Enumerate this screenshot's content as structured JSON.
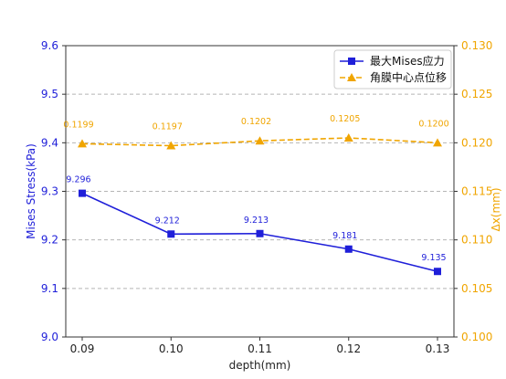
{
  "chart_data": {
    "type": "line",
    "xlabel": "depth(mm)",
    "ylabel_left": "Mises Stress(kPa)",
    "ylabel_right": "Δx(mm)",
    "x": [
      0.09,
      0.1,
      0.11,
      0.12,
      0.13
    ],
    "x_tick_labels": [
      "0.09",
      "0.10",
      "0.11",
      "0.12",
      "0.13"
    ],
    "ylim_left": [
      9.0,
      9.6
    ],
    "yticks_left": [
      "9.0",
      "9.1",
      "9.2",
      "9.3",
      "9.4",
      "9.5",
      "9.6"
    ],
    "ylim_right": [
      0.1,
      0.13
    ],
    "yticks_right": [
      "0.100",
      "0.105",
      "0.110",
      "0.115",
      "0.120",
      "0.125",
      "0.130"
    ],
    "grid": "horizontal dashed",
    "legend_position": "top-right",
    "series": [
      {
        "name": "最大Mises应力",
        "axis": "left",
        "color": "#1f1fd9",
        "line_style": "solid",
        "marker": "square",
        "values": [
          9.296,
          9.212,
          9.213,
          9.181,
          9.135
        ],
        "labels": [
          "9.296",
          "9.212",
          "9.213",
          "9.181",
          "9.135"
        ]
      },
      {
        "name": "角膜中心点位移",
        "axis": "right",
        "color": "#f0a500",
        "line_style": "dashed",
        "marker": "triangle",
        "values": [
          0.1199,
          0.1197,
          0.1202,
          0.1205,
          0.12
        ],
        "labels": [
          "0.1199",
          "0.1197",
          "0.1202",
          "0.1205",
          "0.1200"
        ]
      }
    ]
  }
}
